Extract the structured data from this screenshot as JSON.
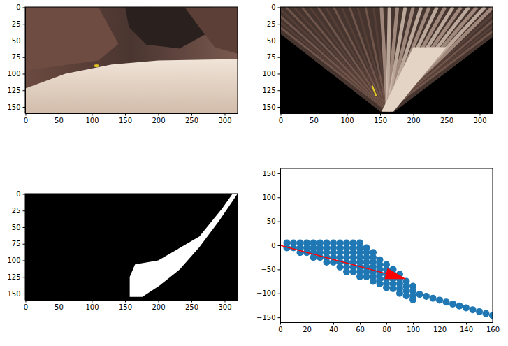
{
  "chart_data": [
    {
      "type": "image",
      "xlim": [
        -0.5,
        319.5
      ],
      "ylim": [
        159.5,
        -0.5
      ],
      "xticks": [
        0,
        50,
        100,
        150,
        200,
        250,
        300
      ],
      "yticks": [
        0,
        25,
        50,
        75,
        100,
        125,
        150
      ]
    },
    {
      "type": "image",
      "xlim": [
        -0.5,
        319.5
      ],
      "ylim": [
        159.5,
        -0.5
      ],
      "xticks": [
        0,
        50,
        100,
        150,
        200,
        250,
        300
      ],
      "yticks": [
        0,
        25,
        50,
        75,
        100,
        125,
        150
      ]
    },
    {
      "type": "image",
      "xlim": [
        -0.5,
        319.5
      ],
      "ylim": [
        159.5,
        -0.5
      ],
      "xticks": [
        0,
        50,
        100,
        150,
        200,
        250,
        300
      ],
      "yticks": [
        0,
        25,
        50,
        75,
        100,
        125,
        150
      ]
    },
    {
      "type": "scatter",
      "xlim": [
        0,
        160
      ],
      "ylim": [
        -160,
        160
      ],
      "xticks": [
        0,
        20,
        40,
        60,
        80,
        100,
        120,
        140,
        160
      ],
      "yticks": [
        {
          "value": -150,
          "label": "−150"
        },
        {
          "value": -100,
          "label": "−100"
        },
        {
          "value": -50,
          "label": "−50"
        },
        0,
        50,
        100,
        150
      ],
      "series": [
        {
          "color": "#1f77b4",
          "marker": "circle",
          "x": [
            5,
            5,
            10,
            10,
            15,
            15,
            15,
            20,
            20,
            20,
            25,
            25,
            25,
            25,
            30,
            30,
            30,
            30,
            35,
            35,
            35,
            35,
            35,
            40,
            40,
            40,
            40,
            40,
            45,
            45,
            45,
            45,
            45,
            45,
            50,
            50,
            50,
            50,
            50,
            50,
            50,
            55,
            55,
            55,
            55,
            55,
            55,
            55,
            60,
            60,
            60,
            60,
            60,
            60,
            60,
            60,
            65,
            65,
            65,
            65,
            65,
            65,
            65,
            70,
            70,
            70,
            70,
            70,
            70,
            70,
            75,
            75,
            75,
            75,
            75,
            75,
            80,
            80,
            80,
            80,
            80,
            80,
            85,
            85,
            85,
            85,
            85,
            90,
            90,
            90,
            90,
            90,
            95,
            95,
            95,
            95,
            100,
            100,
            100,
            100,
            105,
            110,
            115,
            120,
            125,
            130,
            135,
            140,
            145,
            150,
            155,
            160
          ],
          "values": [
            5,
            -5,
            5,
            -5,
            5,
            -5,
            -15,
            5,
            -5,
            -15,
            5,
            -5,
            -15,
            -25,
            5,
            -5,
            -15,
            -25,
            5,
            -5,
            -15,
            -25,
            -35,
            5,
            -5,
            -15,
            -25,
            -35,
            5,
            -5,
            -15,
            -25,
            -35,
            -45,
            5,
            -5,
            -15,
            -25,
            -35,
            -45,
            -55,
            5,
            -5,
            -15,
            -25,
            -35,
            -45,
            -55,
            5,
            -5,
            -15,
            -25,
            -35,
            -45,
            -55,
            -65,
            -5,
            -15,
            -25,
            -35,
            -45,
            -55,
            -65,
            -15,
            -25,
            -35,
            -45,
            -55,
            -65,
            -75,
            -30,
            -40,
            -50,
            -60,
            -70,
            -80,
            -40,
            -50,
            -60,
            -70,
            -80,
            -88,
            -50,
            -60,
            -70,
            -80,
            -90,
            -60,
            -70,
            -80,
            -90,
            -100,
            -75,
            -85,
            -95,
            -105,
            -85,
            -95,
            -105,
            -113,
            -102,
            -106,
            -110,
            -114,
            -118,
            -122,
            -126,
            -130,
            -134,
            -138,
            -142,
            -146
          ]
        }
      ],
      "arrows": [
        {
          "x0": 0,
          "y0": 0,
          "x1": 95,
          "y1": -70,
          "color": "#ff0000"
        }
      ]
    }
  ]
}
